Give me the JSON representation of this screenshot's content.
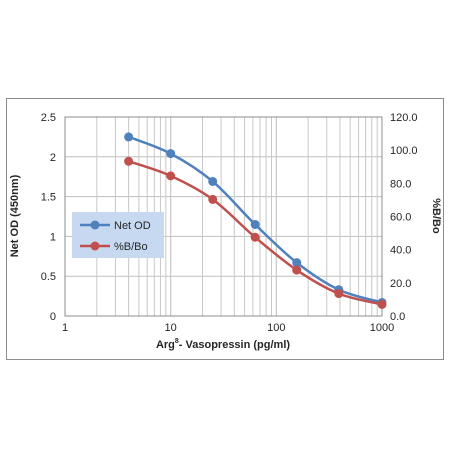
{
  "chart_data": {
    "type": "line",
    "x_scale": "log",
    "xlim": [
      1,
      1000
    ],
    "x_ticks": [
      "1",
      "10",
      "100",
      "1000"
    ],
    "xlabel_main": "Arg",
    "xlabel_sup": "8",
    "xlabel_rest": "- Vasopressin  (pg/ml)",
    "ylabel": "Net OD (450nm)",
    "ylim": [
      0,
      2.5
    ],
    "y_ticks": [
      "0",
      "0.5",
      "1",
      "1.5",
      "2",
      "2.5"
    ],
    "y2label": "%B/Bo",
    "y2lim": [
      0,
      120
    ],
    "y2_ticks": [
      "0.0",
      "20.0",
      "40.0",
      "60.0",
      "80.0",
      "100.0",
      "120.0"
    ],
    "grid": true,
    "legend_position": "left-middle",
    "x": [
      4,
      10,
      25,
      63,
      156,
      390,
      1000
    ],
    "series": [
      {
        "name": "Net OD",
        "axis": "left",
        "color": "#4f81bd",
        "values": [
          2.25,
          2.04,
          1.69,
          1.15,
          0.67,
          0.33,
          0.17
        ]
      },
      {
        "name": "%B/Bo",
        "axis": "right",
        "color": "#c0504d",
        "values": [
          93.3,
          84.5,
          70.3,
          47.5,
          27.7,
          13.5,
          7.0
        ]
      }
    ]
  }
}
